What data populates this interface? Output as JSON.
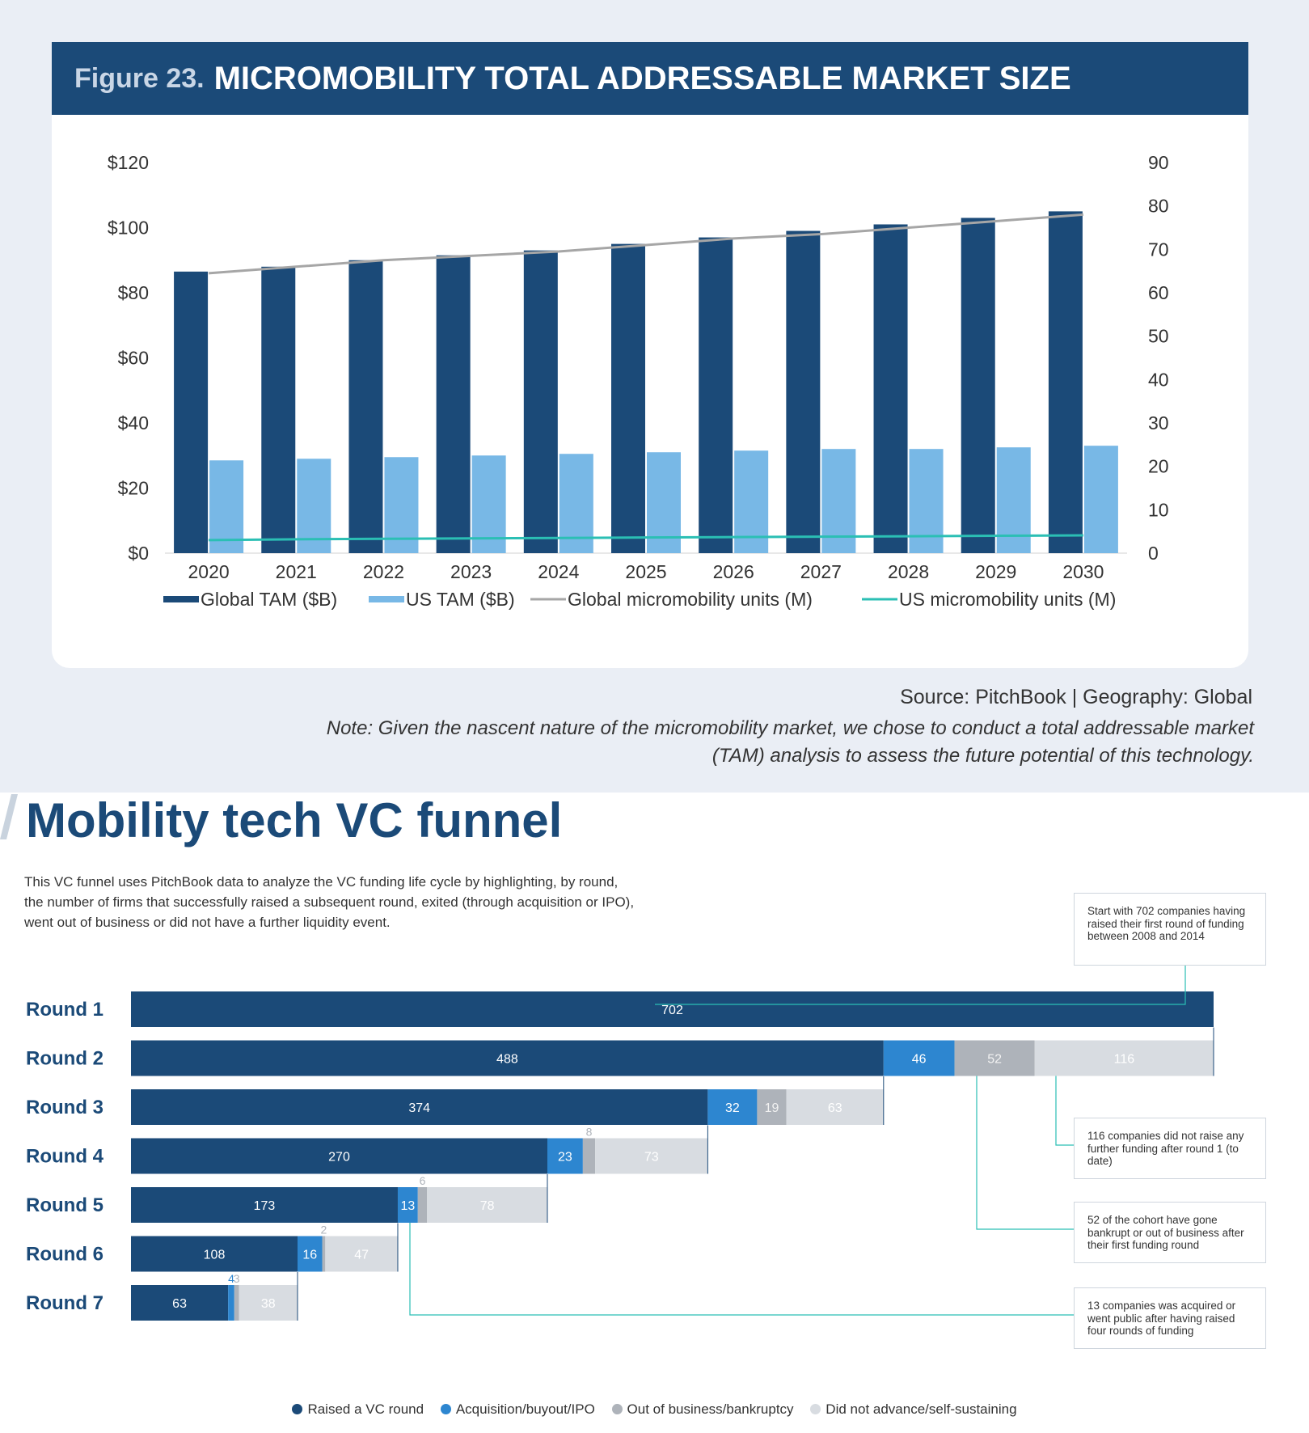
{
  "figure": {
    "prefix": "Figure 23.",
    "title": "MICROMOBILITY TOTAL ADDRESSABLE MARKET SIZE",
    "source": "Source: PitchBook  |  Geography: Global",
    "note": "Note: Given the nascent nature of the micromobility market, we chose to conduct a total addressable market (TAM) analysis to assess the future potential of this technology."
  },
  "funnel_page": {
    "title": "Mobility tech VC funnel",
    "description": "This VC funnel uses PitchBook data to analyze the VC funding life cycle by highlighting, by round, the number of firms that successfully raised a subsequent round, exited (through acquisition or IPO), went out of business or did not have a further liquidity event.",
    "callouts": [
      "Start with 702 companies having raised their first round of funding between 2008 and 2014",
      "116 companies did not raise any further funding after round 1 (to date)",
      "52 of the cohort have gone bankrupt or out of business after their first funding round",
      "13 companies was acquired or went public after having raised four rounds of funding"
    ],
    "legend": [
      "Raised a VC round",
      "Acquisition/buyout/IPO",
      "Out of business/bankruptcy",
      "Did not advance/self-sustaining"
    ]
  },
  "chart_data": [
    {
      "type": "bar",
      "categories": [
        "2020",
        "2021",
        "2022",
        "2023",
        "2024",
        "2025",
        "2026",
        "2027",
        "2028",
        "2029",
        "2030"
      ],
      "series": [
        {
          "name": "Global TAM ($B)",
          "axis": "left",
          "type": "bar",
          "color": "#1b4a78",
          "values": [
            86.5,
            88,
            90,
            91.5,
            93,
            95,
            97,
            99,
            101,
            103,
            105
          ]
        },
        {
          "name": "US TAM ($B)",
          "axis": "left",
          "type": "bar",
          "color": "#78b8e6",
          "values": [
            28.5,
            29,
            29.5,
            30,
            30.5,
            31,
            31.5,
            32,
            32,
            32.5,
            33
          ]
        },
        {
          "name": "Global micromobility units (M)",
          "axis": "right",
          "type": "line",
          "color": "#a6a6a6",
          "values": [
            64.5,
            66,
            67.5,
            68.5,
            69.5,
            71,
            72.5,
            73.5,
            75,
            76.5,
            78
          ]
        },
        {
          "name": "US micromobility units (M)",
          "axis": "right",
          "type": "line",
          "color": "#2bbfb4",
          "values": [
            3,
            3.2,
            3.3,
            3.4,
            3.5,
            3.6,
            3.7,
            3.8,
            3.9,
            4,
            4.1
          ]
        }
      ],
      "yticks": [
        "$0",
        "$20",
        "$40",
        "$60",
        "$80",
        "$100",
        "$120"
      ],
      "y2ticks": [
        "0",
        "10",
        "20",
        "30",
        "40",
        "50",
        "60",
        "70",
        "80",
        "90"
      ],
      "ylim": [
        0,
        120
      ],
      "y2lim": [
        0,
        90
      ],
      "legend_position": "bottom"
    },
    {
      "type": "bar",
      "orientation": "horizontal-stacked",
      "categories": [
        "Round 1",
        "Round 2",
        "Round 3",
        "Round 4",
        "Round 5",
        "Round 6",
        "Round 7"
      ],
      "series": [
        {
          "name": "Raised a VC round",
          "color": "#1b4a78",
          "values": [
            702,
            488,
            374,
            270,
            173,
            108,
            63
          ]
        },
        {
          "name": "Acquisition/buyout/IPO",
          "color": "#2d86d0",
          "values": [
            0,
            46,
            32,
            23,
            13,
            16,
            4
          ]
        },
        {
          "name": "Out of business/bankruptcy",
          "color": "#aeb3ba",
          "values": [
            0,
            52,
            19,
            8,
            6,
            2,
            3
          ]
        },
        {
          "name": "Did not advance/self-sustaining",
          "color": "#d8dce1",
          "values": [
            0,
            116,
            63,
            73,
            78,
            47,
            38
          ]
        }
      ]
    }
  ]
}
